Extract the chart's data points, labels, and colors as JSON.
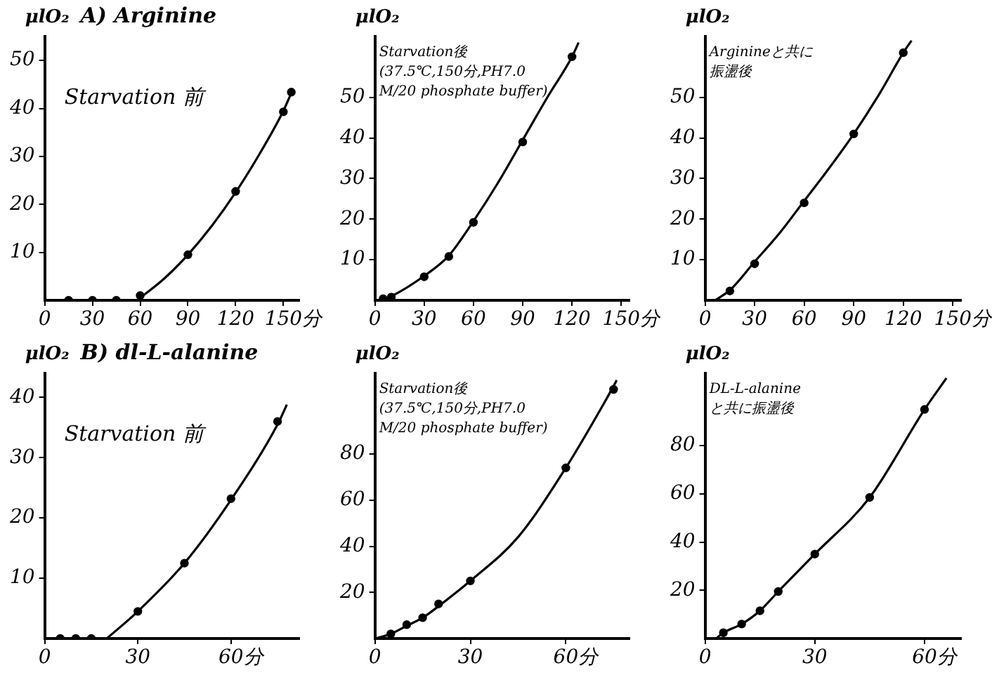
{
  "chart_data": [
    {
      "type": "scatter",
      "title": "A) Arginine",
      "ylabel": "μlO₂",
      "xlabel": "分",
      "annotations": [
        "Starvation 前"
      ],
      "xlim": [
        0,
        160
      ],
      "xticks": [
        0,
        30,
        60,
        90,
        120,
        150
      ],
      "ylim": [
        0,
        55
      ],
      "yticks": [
        10,
        20,
        30,
        40,
        50
      ],
      "grid": false,
      "legend": false,
      "series": [
        {
          "type": "scatter",
          "color": "#000000",
          "marker": "circle",
          "x": [
            15,
            30,
            45,
            60,
            90,
            120,
            150,
            155
          ],
          "values": [
            0,
            0,
            0,
            1,
            9.5,
            22.7,
            39.3,
            43.4
          ]
        },
        {
          "type": "line",
          "color": "#000000",
          "marker": "none",
          "line_style": "solid",
          "x": [
            60,
            75,
            90,
            105,
            120,
            135,
            150,
            156
          ],
          "values": [
            0.5,
            4.5,
            9.5,
            15.5,
            22.5,
            30.5,
            39.5,
            44
          ]
        }
      ]
    },
    {
      "type": "scatter",
      "ylabel": "μlO₂",
      "xlabel": "分",
      "annotations": [
        "Starvation後",
        "(37.5℃,150分,PH7.0",
        "M/20 phosphate buffer)"
      ],
      "xlim": [
        0,
        155
      ],
      "xticks": [
        0,
        30,
        60,
        90,
        120,
        150
      ],
      "ylim": [
        0,
        65
      ],
      "yticks": [
        10,
        20,
        30,
        40,
        50
      ],
      "grid": false,
      "legend": false,
      "series": [
        {
          "type": "scatter",
          "color": "#000000",
          "marker": "circle",
          "x": [
            5,
            10,
            30,
            45,
            60,
            90,
            120
          ],
          "values": [
            0.4,
            0.8,
            5.8,
            10.8,
            19.2,
            39,
            60
          ]
        },
        {
          "type": "line",
          "color": "#000000",
          "marker": "none",
          "line_style": "solid",
          "x": [
            3,
            10,
            30,
            45,
            60,
            75,
            90,
            105,
            120,
            124
          ],
          "values": [
            0,
            1,
            6,
            11,
            19.5,
            29,
            39.5,
            50,
            60,
            63.5
          ]
        }
      ]
    },
    {
      "type": "scatter",
      "ylabel": "μlO₂",
      "xlabel": "分",
      "annotations": [
        "Arginineと共に",
        "振盪後"
      ],
      "xlim": [
        0,
        155
      ],
      "xticks": [
        0,
        30,
        60,
        90,
        120,
        150
      ],
      "ylim": [
        0,
        65
      ],
      "yticks": [
        10,
        20,
        30,
        40,
        50
      ],
      "grid": false,
      "legend": false,
      "series": [
        {
          "type": "scatter",
          "color": "#000000",
          "marker": "circle",
          "x": [
            15,
            30,
            60,
            90,
            120
          ],
          "values": [
            2.3,
            9,
            24,
            41,
            61
          ]
        },
        {
          "type": "line",
          "color": "#000000",
          "marker": "none",
          "line_style": "solid",
          "x": [
            6,
            15,
            30,
            45,
            60,
            75,
            90,
            105,
            120,
            125
          ],
          "values": [
            0,
            2.5,
            9.5,
            16.5,
            24.5,
            32.5,
            41,
            50.5,
            61,
            64
          ]
        }
      ]
    },
    {
      "type": "scatter",
      "title": "B) dl-L-alanine",
      "ylabel": "μlO₂",
      "xlabel": "分",
      "annotations": [
        "Starvation 前"
      ],
      "xlim": [
        0,
        82
      ],
      "xticks": [
        0,
        30,
        60
      ],
      "ylim": [
        0,
        44
      ],
      "yticks": [
        10,
        20,
        30,
        40
      ],
      "grid": false,
      "legend": false,
      "series": [
        {
          "type": "scatter",
          "color": "#000000",
          "marker": "circle",
          "x": [
            5,
            10,
            15,
            30,
            45,
            60,
            75
          ],
          "values": [
            0,
            0,
            0,
            4.5,
            12.5,
            23.2,
            36
          ]
        },
        {
          "type": "line",
          "color": "#000000",
          "marker": "none",
          "line_style": "solid",
          "x": [
            20,
            30,
            45,
            60,
            75,
            78
          ],
          "values": [
            0,
            4.5,
            12.5,
            23,
            35.5,
            38.8
          ]
        }
      ]
    },
    {
      "type": "scatter",
      "ylabel": "μlO₂",
      "xlabel": "分",
      "annotations": [
        "Starvation後",
        "(37.5℃,150分,PH7.0",
        "M/20 phosphate buffer)"
      ],
      "xlim": [
        0,
        80
      ],
      "xticks": [
        0,
        30,
        60
      ],
      "ylim": [
        0,
        115
      ],
      "yticks": [
        20,
        40,
        60,
        80
      ],
      "grid": false,
      "legend": false,
      "series": [
        {
          "type": "scatter",
          "color": "#000000",
          "marker": "circle",
          "x": [
            5,
            10,
            15,
            20,
            30,
            60,
            75
          ],
          "values": [
            2,
            6,
            9,
            15,
            25,
            74,
            108
          ]
        },
        {
          "type": "line",
          "color": "#000000",
          "marker": "none",
          "line_style": "solid",
          "x": [
            0,
            5,
            10,
            15,
            20,
            30,
            45,
            60,
            72,
            76
          ],
          "values": [
            0,
            2,
            5.5,
            9,
            14,
            25,
            44,
            74,
            102,
            112
          ]
        }
      ]
    },
    {
      "type": "scatter",
      "ylabel": "μlO₂",
      "xlabel": "分",
      "annotations": [
        "DL-L-alanine",
        "と共に振盪後"
      ],
      "xlim": [
        0,
        70
      ],
      "xticks": [
        0,
        30,
        60
      ],
      "ylim": [
        0,
        110
      ],
      "yticks": [
        20,
        40,
        60,
        80
      ],
      "grid": false,
      "legend": false,
      "series": [
        {
          "type": "scatter",
          "color": "#000000",
          "marker": "circle",
          "x": [
            5,
            10,
            15,
            20,
            30,
            45,
            60
          ],
          "values": [
            2.4,
            6,
            11.5,
            19.5,
            35,
            58.5,
            95
          ]
        },
        {
          "type": "line",
          "color": "#000000",
          "marker": "none",
          "line_style": "solid",
          "x": [
            3,
            5,
            10,
            15,
            20,
            30,
            45,
            60,
            66
          ],
          "values": [
            0,
            2.4,
            6,
            11.5,
            19.5,
            35,
            58.5,
            95,
            108
          ]
        }
      ]
    }
  ]
}
